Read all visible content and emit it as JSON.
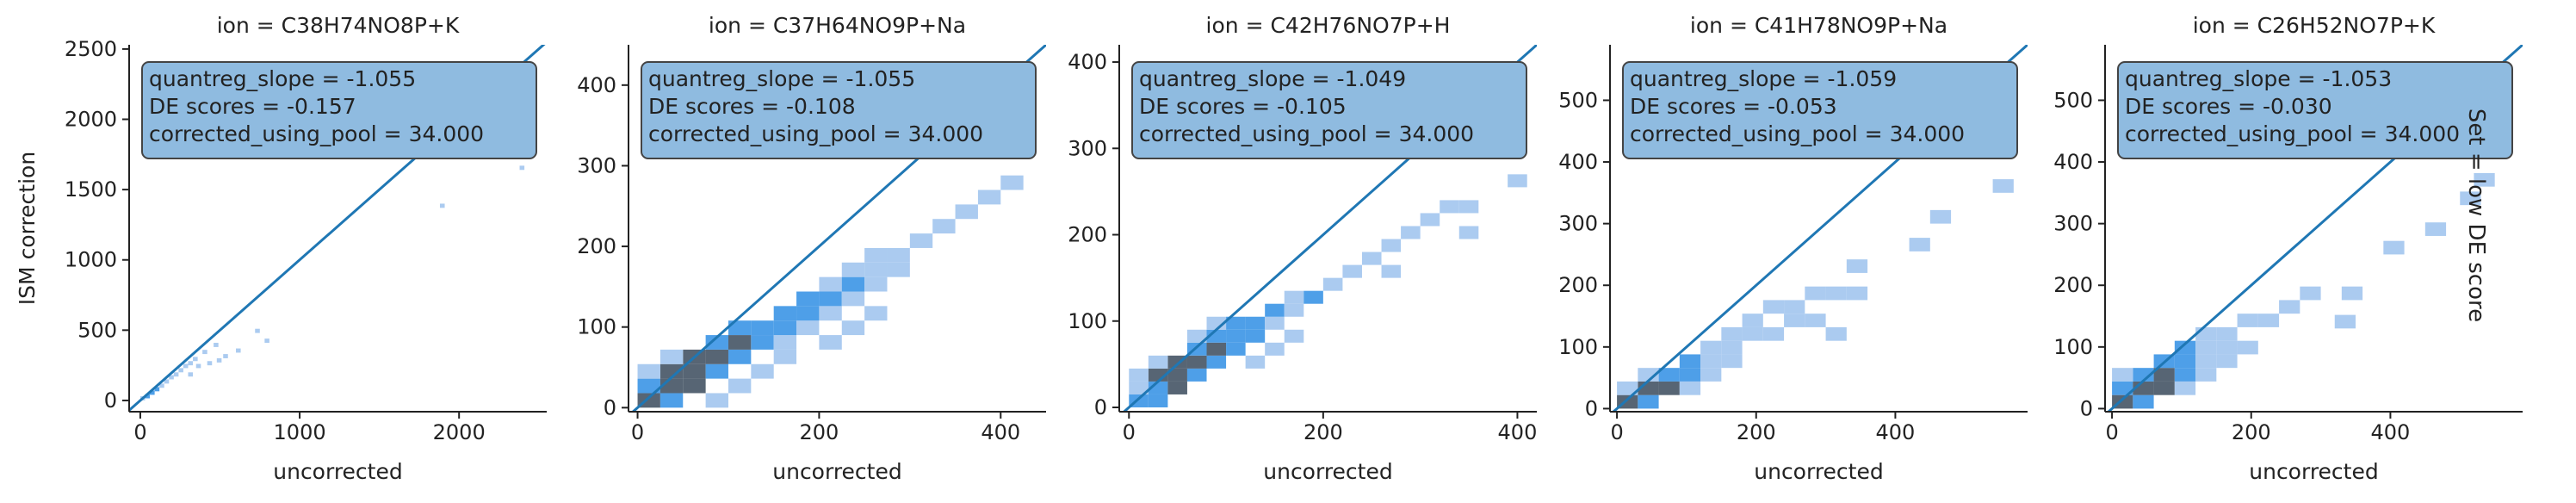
{
  "row_label": "Set = low DE score",
  "colors": {
    "diagonal": "#1f77b4",
    "bin_light": "#a6c8ef",
    "bin_mid": "#3b95e6",
    "bin_dark": "#3a4a5c",
    "box_fill": "#8fbbe0",
    "box_edge": "#444444",
    "axis": "#222222"
  },
  "chart_data": [
    {
      "type": "heatmap",
      "title": "ion = C38H74NO8P+K",
      "xlabel": "uncorrected",
      "ylabel": "ISM correction",
      "xlim": [
        -70,
        2550
      ],
      "ylim": [
        -80,
        2530
      ],
      "xticks": [
        0,
        1000,
        2000
      ],
      "yticks": [
        0,
        500,
        1000,
        1500,
        2000,
        2500
      ],
      "stats": [
        "quantreg_slope = -1.055",
        "DE scores = -0.157",
        "corrected_using_pool = 34.000"
      ],
      "bin_w": 30,
      "bin_h": 30,
      "bins": [
        [
          0,
          0,
          1
        ],
        [
          30,
          15,
          2
        ],
        [
          60,
          40,
          2
        ],
        [
          90,
          65,
          2
        ],
        [
          120,
          90,
          1
        ],
        [
          150,
          120,
          1
        ],
        [
          180,
          150,
          1
        ],
        [
          210,
          170,
          1
        ],
        [
          240,
          200,
          1
        ],
        [
          270,
          230,
          1
        ],
        [
          300,
          250,
          1
        ],
        [
          330,
          280,
          1
        ],
        [
          390,
          330,
          1
        ],
        [
          460,
          380,
          1
        ],
        [
          300,
          170,
          1
        ],
        [
          350,
          230,
          1
        ],
        [
          420,
          250,
          1
        ],
        [
          480,
          270,
          1
        ],
        [
          520,
          300,
          1
        ],
        [
          600,
          340,
          1
        ],
        [
          720,
          480,
          1
        ],
        [
          780,
          410,
          1
        ],
        [
          1880,
          1370,
          1
        ],
        [
          2380,
          1640,
          1
        ]
      ]
    },
    {
      "type": "heatmap",
      "title": "ion = C37H64NO9P+Na",
      "xlabel": "uncorrected",
      "ylabel": "",
      "xlim": [
        -10,
        450
      ],
      "ylim": [
        -5,
        450
      ],
      "xticks": [
        0,
        200,
        400
      ],
      "yticks": [
        0,
        100,
        200,
        300,
        400
      ],
      "stats": [
        "quantreg_slope = -1.055",
        "DE scores = -0.108",
        "corrected_using_pool = 34.000"
      ],
      "bin_w": 25,
      "bin_h": 18,
      "bins": [
        [
          0,
          0,
          3
        ],
        [
          25,
          0,
          2
        ],
        [
          0,
          18,
          2
        ],
        [
          25,
          18,
          3
        ],
        [
          50,
          18,
          3
        ],
        [
          25,
          36,
          3
        ],
        [
          50,
          36,
          3
        ],
        [
          75,
          36,
          2
        ],
        [
          50,
          54,
          3
        ],
        [
          75,
          54,
          3
        ],
        [
          100,
          54,
          2
        ],
        [
          75,
          72,
          2
        ],
        [
          100,
          72,
          3
        ],
        [
          125,
          72,
          2
        ],
        [
          150,
          72,
          1
        ],
        [
          100,
          90,
          2
        ],
        [
          125,
          90,
          2
        ],
        [
          150,
          90,
          2
        ],
        [
          175,
          90,
          1
        ],
        [
          150,
          108,
          2
        ],
        [
          175,
          108,
          2
        ],
        [
          200,
          108,
          1
        ],
        [
          175,
          126,
          2
        ],
        [
          200,
          126,
          2
        ],
        [
          225,
          126,
          1
        ],
        [
          200,
          144,
          1
        ],
        [
          225,
          144,
          2
        ],
        [
          250,
          144,
          1
        ],
        [
          225,
          162,
          1
        ],
        [
          250,
          162,
          1
        ],
        [
          275,
          162,
          1
        ],
        [
          250,
          180,
          1
        ],
        [
          275,
          180,
          1
        ],
        [
          300,
          198,
          1
        ],
        [
          325,
          216,
          1
        ],
        [
          350,
          234,
          1
        ],
        [
          375,
          252,
          1
        ],
        [
          400,
          270,
          1
        ],
        [
          0,
          36,
          1
        ],
        [
          25,
          54,
          1
        ],
        [
          75,
          0,
          1
        ],
        [
          100,
          18,
          1
        ],
        [
          125,
          36,
          1
        ],
        [
          150,
          54,
          1
        ],
        [
          200,
          72,
          1
        ],
        [
          225,
          90,
          1
        ],
        [
          250,
          108,
          1
        ]
      ]
    },
    {
      "type": "heatmap",
      "title": "ion = C42H76NO7P+H",
      "xlabel": "uncorrected",
      "ylabel": "",
      "xlim": [
        -10,
        420
      ],
      "ylim": [
        -5,
        420
      ],
      "xticks": [
        0,
        200,
        400
      ],
      "yticks": [
        0,
        100,
        200,
        300,
        400
      ],
      "stats": [
        "quantreg_slope = -1.049",
        "DE scores = -0.105",
        "corrected_using_pool = 34.000"
      ],
      "bin_w": 20,
      "bin_h": 15,
      "bins": [
        [
          0,
          0,
          2
        ],
        [
          20,
          0,
          2
        ],
        [
          0,
          15,
          1
        ],
        [
          20,
          15,
          2
        ],
        [
          40,
          15,
          3
        ],
        [
          20,
          30,
          3
        ],
        [
          40,
          30,
          3
        ],
        [
          60,
          30,
          2
        ],
        [
          40,
          45,
          3
        ],
        [
          60,
          45,
          3
        ],
        [
          80,
          45,
          2
        ],
        [
          60,
          60,
          2
        ],
        [
          80,
          60,
          3
        ],
        [
          100,
          60,
          2
        ],
        [
          80,
          75,
          2
        ],
        [
          100,
          75,
          2
        ],
        [
          120,
          75,
          2
        ],
        [
          100,
          90,
          2
        ],
        [
          120,
          90,
          2
        ],
        [
          140,
          90,
          1
        ],
        [
          140,
          105,
          2
        ],
        [
          160,
          105,
          1
        ],
        [
          160,
          120,
          1
        ],
        [
          180,
          120,
          2
        ],
        [
          200,
          135,
          1
        ],
        [
          220,
          150,
          1
        ],
        [
          240,
          165,
          1
        ],
        [
          260,
          180,
          1
        ],
        [
          280,
          195,
          1
        ],
        [
          300,
          210,
          1
        ],
        [
          320,
          225,
          1
        ],
        [
          340,
          225,
          1
        ],
        [
          390,
          255,
          1
        ],
        [
          0,
          30,
          1
        ],
        [
          20,
          45,
          1
        ],
        [
          120,
          45,
          1
        ],
        [
          140,
          60,
          1
        ],
        [
          160,
          75,
          1
        ],
        [
          60,
          75,
          1
        ],
        [
          80,
          90,
          1
        ],
        [
          260,
          150,
          1
        ],
        [
          340,
          195,
          1
        ]
      ]
    },
    {
      "type": "heatmap",
      "title": "ion = C41H78NO9P+Na",
      "xlabel": "uncorrected",
      "ylabel": "",
      "xlim": [
        -10,
        590
      ],
      "ylim": [
        -5,
        590
      ],
      "xticks": [
        0,
        200,
        400
      ],
      "yticks": [
        0,
        100,
        200,
        300,
        400,
        500
      ],
      "stats": [
        "quantreg_slope = -1.059",
        "DE scores = -0.053",
        "corrected_using_pool = 34.000"
      ],
      "bin_w": 30,
      "bin_h": 22,
      "bins": [
        [
          0,
          0,
          3
        ],
        [
          30,
          0,
          2
        ],
        [
          30,
          22,
          3
        ],
        [
          60,
          22,
          3
        ],
        [
          60,
          44,
          2
        ],
        [
          90,
          44,
          2
        ],
        [
          30,
          44,
          1
        ],
        [
          90,
          66,
          2
        ],
        [
          120,
          66,
          1
        ],
        [
          120,
          88,
          1
        ],
        [
          150,
          88,
          1
        ],
        [
          150,
          110,
          1
        ],
        [
          180,
          110,
          1
        ],
        [
          180,
          132,
          1
        ],
        [
          210,
          154,
          1
        ],
        [
          240,
          154,
          1
        ],
        [
          270,
          176,
          1
        ],
        [
          300,
          176,
          1
        ],
        [
          330,
          176,
          1
        ],
        [
          270,
          132,
          1
        ],
        [
          300,
          110,
          1
        ],
        [
          210,
          110,
          1
        ],
        [
          240,
          132,
          1
        ],
        [
          330,
          220,
          1
        ],
        [
          420,
          255,
          1
        ],
        [
          450,
          300,
          1
        ],
        [
          540,
          350,
          1
        ],
        [
          90,
          22,
          1
        ],
        [
          120,
          44,
          1
        ],
        [
          150,
          66,
          1
        ],
        [
          0,
          22,
          1
        ]
      ]
    },
    {
      "type": "heatmap",
      "title": "ion = C26H52NO7P+K",
      "xlabel": "uncorrected",
      "ylabel": "",
      "xlim": [
        -10,
        590
      ],
      "ylim": [
        -5,
        590
      ],
      "xticks": [
        0,
        200,
        400
      ],
      "yticks": [
        0,
        100,
        200,
        300,
        400,
        500
      ],
      "stats": [
        "quantreg_slope = -1.053",
        "DE scores = -0.030",
        "corrected_using_pool = 34.000"
      ],
      "bin_w": 30,
      "bin_h": 22,
      "bins": [
        [
          0,
          0,
          3
        ],
        [
          30,
          0,
          2
        ],
        [
          0,
          22,
          2
        ],
        [
          30,
          22,
          3
        ],
        [
          60,
          22,
          3
        ],
        [
          30,
          44,
          2
        ],
        [
          60,
          44,
          3
        ],
        [
          90,
          44,
          2
        ],
        [
          60,
          66,
          2
        ],
        [
          90,
          66,
          2
        ],
        [
          120,
          66,
          1
        ],
        [
          90,
          88,
          2
        ],
        [
          120,
          88,
          1
        ],
        [
          150,
          88,
          1
        ],
        [
          120,
          110,
          1
        ],
        [
          150,
          110,
          1
        ],
        [
          180,
          132,
          1
        ],
        [
          210,
          132,
          1
        ],
        [
          240,
          154,
          1
        ],
        [
          270,
          176,
          1
        ],
        [
          320,
          130,
          1
        ],
        [
          330,
          176,
          1
        ],
        [
          390,
          250,
          1
        ],
        [
          450,
          280,
          1
        ],
        [
          500,
          330,
          1
        ],
        [
          520,
          360,
          1
        ],
        [
          90,
          22,
          1
        ],
        [
          120,
          44,
          1
        ],
        [
          150,
          66,
          1
        ],
        [
          180,
          88,
          1
        ],
        [
          0,
          44,
          1
        ]
      ]
    }
  ]
}
